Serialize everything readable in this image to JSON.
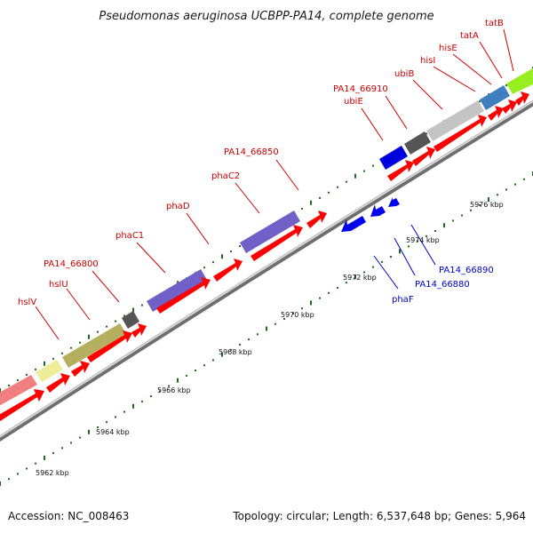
{
  "title": "Pseudomonas aeruginosa UCBPP-PA14, complete genome",
  "footer": {
    "accession": "Accession: NC_008463",
    "summary": "Topology: circular; Length: 6,537,648 bp; Genes: 5,964"
  },
  "colors": {
    "forward_gene": "#ff0000",
    "reverse_gene": "#0000ee",
    "backbone": "#888888",
    "ticks": "#1a6e1a",
    "label_forward": "#cc0000",
    "label_reverse": "#0000cc"
  },
  "scale_labels": [
    "5962 kbp",
    "5964 kbp",
    "5966 kbp",
    "5968 kbp",
    "5970 kbp",
    "5972 kbp",
    "5974 kbp",
    "5976 kbp"
  ],
  "genes_forward": [
    "hslV",
    "hslU",
    "PA14_66800",
    "phaC1",
    "phaD",
    "phaC2",
    "PA14_66850",
    "ubiE",
    "PA14_66910",
    "ubiB",
    "hisI",
    "hisE",
    "tatA",
    "tatB"
  ],
  "genes_reverse": [
    "phaF",
    "PA14_66880",
    "PA14_66890"
  ]
}
